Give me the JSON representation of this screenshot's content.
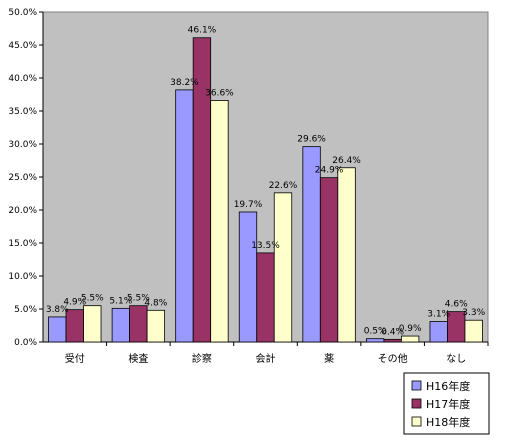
{
  "chart_data": {
    "type": "bar",
    "categories": [
      "受付",
      "検査",
      "診察",
      "会計",
      "薬",
      "その他",
      "なし"
    ],
    "series": [
      {
        "name": "H16年度",
        "color": "#9999ff",
        "values": [
          3.8,
          5.1,
          38.2,
          19.7,
          29.6,
          0.5,
          3.1
        ],
        "labels": [
          "3.8%",
          "5.1%",
          "38.2%",
          "19.7%",
          "29.6%",
          "0.5%",
          "3.1%"
        ]
      },
      {
        "name": "H17年度",
        "color": "#993366",
        "values": [
          4.9,
          5.5,
          46.1,
          13.5,
          24.9,
          0.4,
          4.6
        ],
        "labels": [
          "4.9%",
          "5.5%",
          "46.1%",
          "13.5%",
          "24.9%",
          "0.4%",
          "4.6%"
        ]
      },
      {
        "name": "H18年度",
        "color": "#ffffcc",
        "values": [
          5.5,
          4.8,
          36.6,
          22.6,
          26.4,
          0.9,
          3.3
        ],
        "labels": [
          "5.5%",
          "4.8%",
          "36.6%",
          "22.6%",
          "26.4%",
          "0.9%",
          "3.3%"
        ]
      }
    ],
    "ylim": [
      0,
      50
    ],
    "yticks": [
      "0.0%",
      "5.0%",
      "10.0%",
      "15.0%",
      "20.0%",
      "25.0%",
      "30.0%",
      "35.0%",
      "40.0%",
      "45.0%",
      "50.0%"
    ],
    "plot_background": "#c0c0c0",
    "grid": false,
    "legend_position": "bottom-right"
  }
}
